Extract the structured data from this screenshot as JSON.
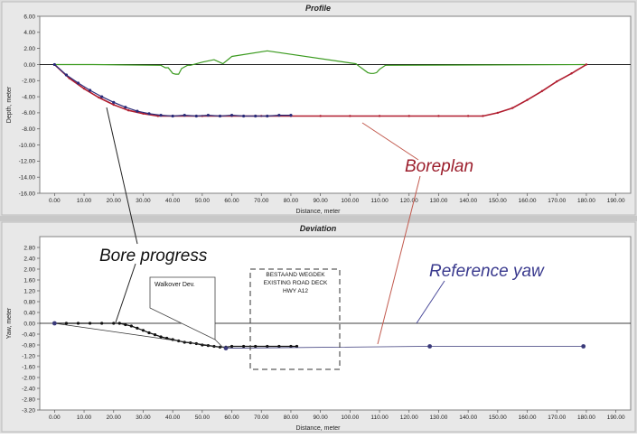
{
  "window": {
    "bg": "#dcdcdc",
    "plot_bg": "#ffffff"
  },
  "chart_data": [
    {
      "id": "profile",
      "type": "line",
      "title": "Profile",
      "xlabel": "Distance, meter",
      "ylabel": "Depth, meter",
      "xlim": [
        -5,
        195
      ],
      "ylim": [
        -16,
        6
      ],
      "x_ticks": [
        "0.00",
        "10.00",
        "20.00",
        "30.00",
        "40.00",
        "50.00",
        "60.00",
        "70.00",
        "80.00",
        "90.00",
        "100.00",
        "110.00",
        "120.00",
        "130.00",
        "140.00",
        "150.00",
        "160.00",
        "170.00",
        "180.00",
        "190.00"
      ],
      "y_ticks": [
        "6.00",
        "4.00",
        "2.00",
        "0.00",
        "-2.00",
        "-4.00",
        "-6.00",
        "-8.00",
        "-10.00",
        "-12.00",
        "-14.00",
        "-16.00"
      ],
      "grid": false,
      "series": [
        {
          "role": "surface",
          "color": "#3a9a1e",
          "x": [
            0,
            13,
            36,
            37.5,
            38.5,
            40,
            41,
            42,
            43,
            44,
            45,
            46,
            50,
            54,
            57,
            60,
            72,
            102,
            103,
            106,
            107,
            108,
            109,
            110,
            112,
            180
          ],
          "y": [
            0,
            0,
            -0.1,
            -0.4,
            -0.4,
            -1.1,
            -1.2,
            -1.2,
            -0.5,
            -0.3,
            -0.1,
            -0.1,
            0.3,
            0.6,
            0.1,
            1.0,
            1.7,
            0.1,
            -0.2,
            -1.0,
            -1.1,
            -1.1,
            -1.0,
            -0.6,
            -0.1,
            0
          ]
        },
        {
          "role": "boreplan",
          "color": "#b01c2e",
          "x": [
            0,
            5,
            10,
            15,
            20,
            25,
            30,
            35,
            40,
            50,
            60,
            70,
            80,
            90,
            100,
            110,
            120,
            130,
            140,
            145,
            150,
            155,
            160,
            165,
            170,
            175,
            180
          ],
          "y": [
            0,
            -1.7,
            -3.0,
            -4.1,
            -5.0,
            -5.7,
            -6.1,
            -6.4,
            -6.4,
            -6.4,
            -6.4,
            -6.4,
            -6.4,
            -6.4,
            -6.4,
            -6.4,
            -6.4,
            -6.4,
            -6.4,
            -6.4,
            -6.0,
            -5.4,
            -4.4,
            -3.3,
            -2.1,
            -1.1,
            0
          ]
        },
        {
          "role": "bore_progress",
          "color": "#2a2a78",
          "x": [
            0,
            4,
            8,
            12,
            16,
            20,
            24,
            28,
            32,
            36,
            40,
            44,
            48,
            52,
            56,
            60,
            64,
            68,
            72,
            76,
            80
          ],
          "y": [
            0,
            -1.3,
            -2.3,
            -3.2,
            -4.0,
            -4.7,
            -5.3,
            -5.8,
            -6.1,
            -6.3,
            -6.4,
            -6.3,
            -6.4,
            -6.3,
            -6.4,
            -6.3,
            -6.4,
            -6.4,
            -6.4,
            -6.3,
            -6.3
          ]
        }
      ]
    },
    {
      "id": "deviation",
      "type": "line",
      "title": "Deviation",
      "xlabel": "Distance, meter",
      "ylabel": "Yaw, meter",
      "xlim": [
        -5,
        195
      ],
      "ylim": [
        -3.2,
        3.2
      ],
      "x_ticks": [
        "0.00",
        "10.00",
        "20.00",
        "30.00",
        "40.00",
        "50.00",
        "60.00",
        "70.00",
        "80.00",
        "90.00",
        "100.00",
        "110.00",
        "120.00",
        "130.00",
        "140.00",
        "150.00",
        "160.00",
        "170.00",
        "180.00",
        "190.00"
      ],
      "y_ticks": [
        "2.80",
        "2.40",
        "2.00",
        "1.60",
        "1.20",
        "0.80",
        "0.40",
        "0.00",
        "-0.40",
        "-0.80",
        "-1.20",
        "-1.60",
        "-2.00",
        "-2.40",
        "-2.80",
        "-3.20"
      ],
      "grid": false,
      "series": [
        {
          "role": "bore_progress",
          "color": "#111111",
          "x": [
            0,
            4,
            8,
            12,
            16,
            20,
            22,
            24,
            26,
            28,
            30,
            32,
            34,
            36,
            38,
            40,
            42,
            44,
            46,
            48,
            50,
            52,
            54,
            56,
            58,
            60,
            64,
            68,
            72,
            76,
            80,
            82
          ],
          "y": [
            0,
            0,
            0,
            0,
            0,
            0,
            0,
            -0.05,
            -0.1,
            -0.18,
            -0.26,
            -0.35,
            -0.42,
            -0.5,
            -0.55,
            -0.6,
            -0.65,
            -0.7,
            -0.72,
            -0.75,
            -0.8,
            -0.82,
            -0.85,
            -0.88,
            -0.88,
            -0.85,
            -0.85,
            -0.85,
            -0.85,
            -0.85,
            -0.85,
            -0.85
          ]
        },
        {
          "role": "walkover",
          "color": "#333333",
          "x": [
            0,
            58
          ],
          "y": [
            0,
            -0.9
          ]
        },
        {
          "role": "surveyed_points",
          "color": "#3a3a7a",
          "x": [
            0,
            58,
            127,
            179
          ],
          "y": [
            0,
            -0.92,
            -0.85,
            -0.85
          ]
        },
        {
          "role": "reference_yaw",
          "color": "#3a3a7a",
          "x": [
            58,
            127,
            179
          ],
          "y": [
            -0.92,
            -0.85,
            -0.85
          ]
        }
      ]
    }
  ],
  "annotations": {
    "boreplan": "Boreplan",
    "bore_progress": "Bore progress",
    "reference_yaw": "Reference yaw",
    "walkover": "Walkover Dev.",
    "road_line1": "BESTAAND WEGDEK",
    "road_line2": "EXISTING ROAD DECK",
    "road_line3": "HWY A12"
  }
}
